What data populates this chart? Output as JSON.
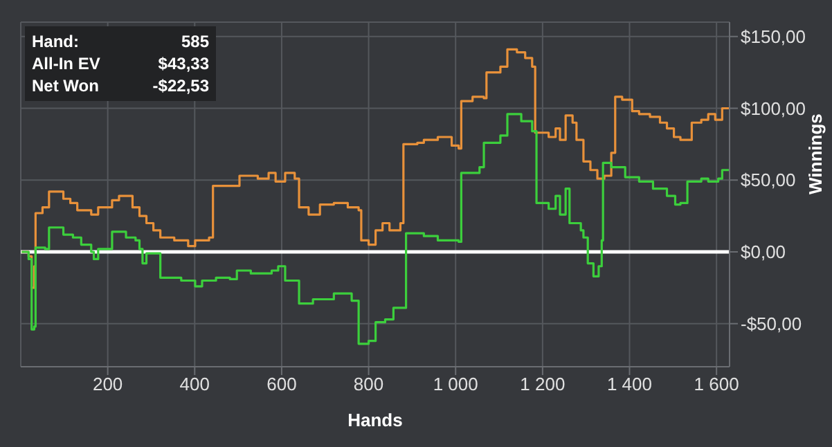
{
  "chart_data": {
    "type": "step",
    "xlabel": "Hands",
    "ylabel": "Winnings",
    "annotations": [
      "Hand:",
      "585",
      "All-In EV",
      "$43,33",
      "Net Won",
      "-$22,53"
    ],
    "xlim": [
      0,
      1630
    ],
    "ylim": [
      -80,
      160
    ],
    "xticks": [
      200,
      400,
      600,
      800,
      {
        "value": 1000,
        "label": "1 000"
      },
      {
        "value": 1200,
        "label": "1 200"
      },
      {
        "value": 1400,
        "label": "1 400"
      },
      {
        "value": 1600,
        "label": "1 600"
      }
    ],
    "yticks": [
      {
        "value": -50,
        "label": "-$50,00"
      },
      {
        "value": 0,
        "label": "$0,00"
      },
      {
        "value": 50,
        "label": "$50,00"
      },
      {
        "value": 100,
        "label": "$100,00"
      },
      {
        "value": 150,
        "label": "$150,00"
      }
    ],
    "grid": true,
    "ref_lines": [
      {
        "axis": "y",
        "value": 0,
        "color": "#ffffff"
      }
    ],
    "series": [
      {
        "color": "#e8913a",
        "x": [
          2,
          18,
          25,
          31,
          34,
          50,
          65,
          98,
          114,
          130,
          162,
          178,
          210,
          226,
          257,
          273,
          289,
          305,
          321,
          353,
          385,
          401,
          433,
          442,
          481,
          503,
          545,
          570,
          586,
          608,
          630,
          640,
          662,
          688,
          720,
          752,
          777,
          783,
          800,
          816,
          832,
          848,
          873,
          880,
          912,
          927,
          959,
          991,
          1007,
          1013,
          1039,
          1065,
          1071,
          1103,
          1119,
          1141,
          1160,
          1176,
          1183,
          1214,
          1230,
          1240,
          1253,
          1269,
          1278,
          1294,
          1310,
          1326,
          1342,
          1358,
          1367,
          1383,
          1406,
          1422,
          1447,
          1470,
          1486,
          1502,
          1517,
          1533,
          1543,
          1565,
          1581,
          1597,
          1613,
          1629
        ],
        "values": [
          0,
          -3,
          -25,
          -10,
          27,
          31,
          42,
          37,
          34,
          29,
          26,
          31,
          36,
          39,
          31,
          25,
          20,
          15,
          10,
          8,
          4,
          8,
          10,
          46,
          46,
          53,
          51,
          55,
          49,
          55,
          51,
          31,
          26,
          33,
          34,
          31,
          29,
          8,
          5,
          15,
          20,
          15,
          20,
          75,
          76,
          78,
          80,
          74,
          72,
          105,
          108,
          107,
          125,
          129,
          141,
          139,
          135,
          129,
          83,
          80,
          86,
          78,
          95,
          90,
          78,
          63,
          57,
          51,
          53,
          69,
          108,
          106,
          98,
          96,
          94,
          90,
          86,
          80,
          78,
          78,
          90,
          92,
          96,
          92,
          100,
          100
        ]
      },
      {
        "color": "#3ccf3c",
        "x": [
          2,
          18,
          25,
          31,
          34,
          56,
          65,
          98,
          120,
          139,
          162,
          168,
          178,
          194,
          210,
          242,
          264,
          273,
          280,
          289,
          321,
          369,
          401,
          417,
          449,
          481,
          497,
          529,
          577,
          592,
          608,
          640,
          672,
          720,
          761,
          777,
          800,
          816,
          838,
          857,
          880,
          886,
          927,
          959,
          1007,
          1013,
          1055,
          1065,
          1103,
          1119,
          1151,
          1176,
          1186,
          1214,
          1230,
          1240,
          1253,
          1262,
          1288,
          1294,
          1304,
          1317,
          1329,
          1336,
          1339,
          1358,
          1390,
          1422,
          1454,
          1486,
          1505,
          1517,
          1533,
          1565,
          1581,
          1604,
          1613,
          1629
        ],
        "values": [
          0,
          -5,
          -54,
          -52,
          3,
          2,
          17,
          12,
          10,
          5,
          0,
          -5,
          2,
          2,
          14,
          10,
          8,
          2,
          -8,
          -1,
          -18,
          -20,
          -24,
          -20,
          -18,
          -19,
          -13,
          -15,
          -13,
          -10,
          -20,
          -36,
          -33,
          -29,
          -34,
          -64,
          -62,
          -49,
          -47,
          -39,
          -39,
          13,
          11,
          8,
          7,
          55,
          59,
          76,
          81,
          96,
          91,
          84,
          34,
          30,
          39,
          26,
          44,
          20,
          15,
          10,
          -8,
          -17,
          -10,
          8,
          62,
          59,
          52,
          49,
          44,
          39,
          33,
          34,
          49,
          51,
          49,
          51,
          57,
          57
        ]
      }
    ]
  }
}
